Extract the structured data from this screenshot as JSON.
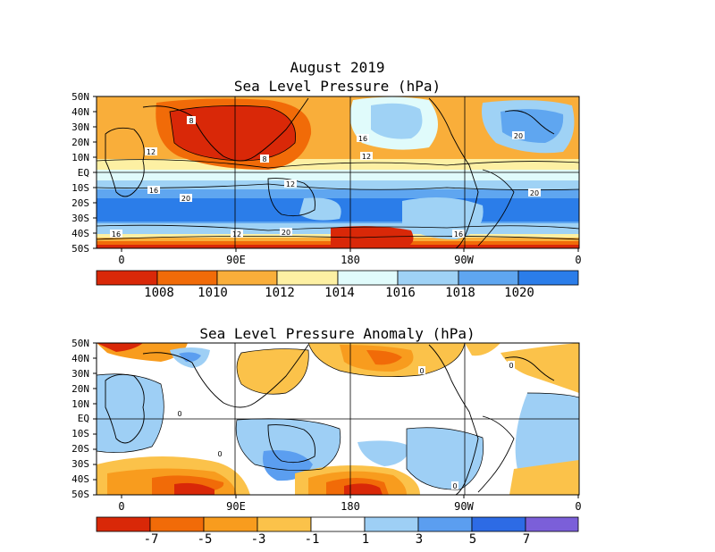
{
  "header": {
    "title_line1": "August 2019",
    "title_line2": "Sea Level Pressure (hPa)",
    "title_anom": "Sea Level Pressure Anomaly (hPa)"
  },
  "lat_labels": [
    "50N",
    "40N",
    "30N",
    "20N",
    "10N",
    "EQ",
    "10S",
    "20S",
    "30S",
    "40S",
    "50S"
  ],
  "lon_labels": [
    "0",
    "90E",
    "180",
    "90W",
    "0"
  ],
  "colors": {
    "slp": [
      "#d92808",
      "#f16b08",
      "#f9ae3a",
      "#fdf0a3",
      "#e0fbfb",
      "#9fd2f5",
      "#5fa6f0",
      "#2b7de9"
    ],
    "anom": [
      "#d92808",
      "#f16b08",
      "#f89c1e",
      "#fbc24a",
      "#ffffff",
      "#9ecff5",
      "#5b9ef0",
      "#2d6be5",
      "#7b5fd9"
    ]
  },
  "chart_data": [
    {
      "type": "heatmap",
      "title": "Sea Level Pressure (hPa)",
      "xlabel": "",
      "ylabel": "",
      "x_ticks": [
        "0",
        "90E",
        "180",
        "90W",
        "0"
      ],
      "y_ticks": [
        "50N",
        "40N",
        "30N",
        "20N",
        "10N",
        "EQ",
        "10S",
        "20S",
        "30S",
        "40S",
        "50S"
      ],
      "colorbar_labels": [
        "1008",
        "1010",
        "1012",
        "1014",
        "1016",
        "1018",
        "1020"
      ],
      "contour_labels": [
        "8",
        "12",
        "16",
        "20"
      ]
    },
    {
      "type": "heatmap",
      "title": "Sea Level Pressure Anomaly (hPa)",
      "xlabel": "",
      "ylabel": "",
      "x_ticks": [
        "0",
        "90E",
        "180",
        "90W",
        "0"
      ],
      "y_ticks": [
        "50N",
        "40N",
        "30N",
        "20N",
        "10N",
        "EQ",
        "10S",
        "20S",
        "30S",
        "40S",
        "50S"
      ],
      "colorbar_labels": [
        "-7",
        "-5",
        "-3",
        "-1",
        "1",
        "3",
        "5",
        "7"
      ],
      "contour_labels": [
        "0"
      ]
    }
  ]
}
